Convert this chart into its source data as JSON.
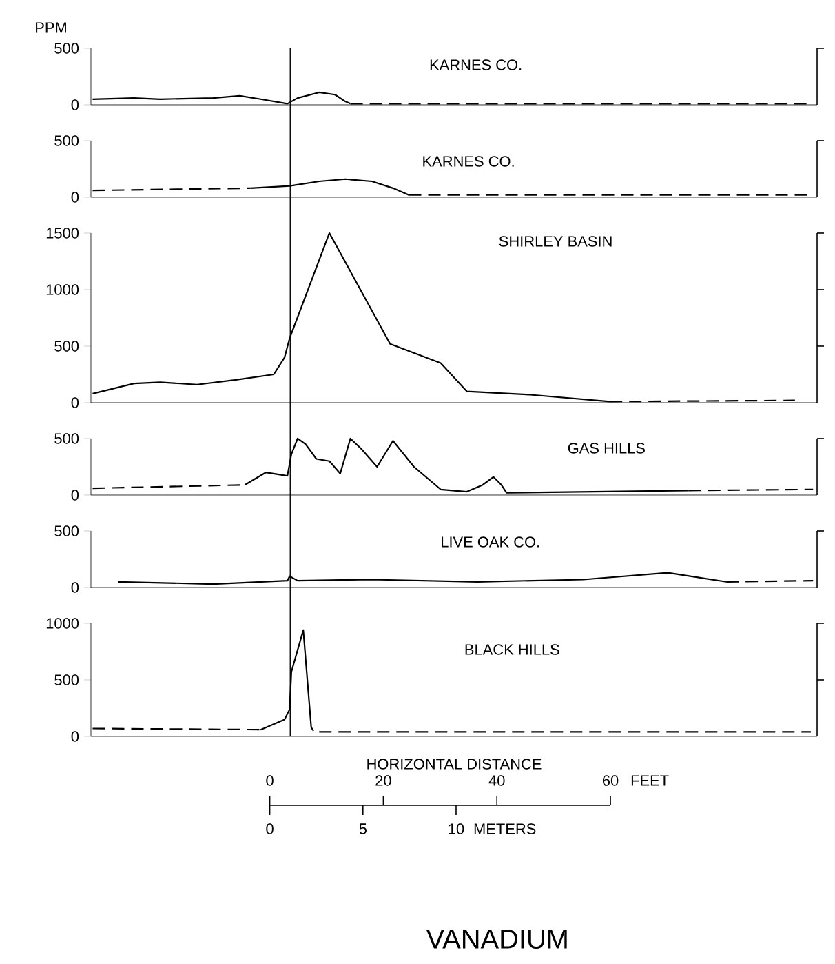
{
  "chart_data": [
    {
      "type": "line",
      "title": "KARNES CO.",
      "ylabel": "PPM",
      "xlim": [
        -31.5,
        96.4
      ],
      "ylim": [
        0,
        500
      ],
      "yticks": [
        0,
        500
      ],
      "tick_labels": "y",
      "ref_lines": [
        {
          "axis": "x",
          "value": 3.6
        }
      ],
      "series": [
        {
          "color": "#000000",
          "x": [
            -31.2,
            -23.9,
            -19.3,
            -10,
            -5.3,
            -1.6,
            3.1,
            4.9,
            8.7,
            11.5,
            13.3,
            14.2
          ],
          "values": [
            50,
            60,
            50,
            60,
            80,
            50,
            10,
            60,
            110,
            90,
            30,
            10
          ]
        },
        {
          "color": "#000000",
          "line_style": "dashed",
          "x": [
            14.2,
            95.7
          ],
          "values": [
            10,
            10
          ]
        }
      ]
    },
    {
      "type": "line",
      "title": "KARNES CO.",
      "xlim": [
        -31.5,
        96.4
      ],
      "ylim": [
        0,
        500
      ],
      "yticks": [
        0,
        500
      ],
      "tick_labels": "y",
      "ref_lines": [
        {
          "axis": "x",
          "value": 3.6
        }
      ],
      "series": [
        {
          "color": "#000000",
          "line_style": "dashed",
          "x": [
            -31.2,
            -3.4
          ],
          "values": [
            60,
            80
          ]
        },
        {
          "color": "#000000",
          "x": [
            -3.4,
            3.5,
            8.7,
            13.3,
            18,
            21.7,
            24.5
          ],
          "values": [
            80,
            100,
            140,
            160,
            140,
            80,
            20
          ]
        },
        {
          "color": "#000000",
          "line_style": "dashed",
          "x": [
            24.5,
            95.7
          ],
          "values": [
            20,
            20
          ]
        }
      ]
    },
    {
      "type": "line",
      "title": "SHIRLEY BASIN",
      "xlim": [
        -31.5,
        96.4
      ],
      "ylim": [
        0,
        1500
      ],
      "yticks": [
        0,
        500,
        1000,
        1500
      ],
      "tick_labels": "y",
      "ref_lines": [
        {
          "axis": "x",
          "value": 3.6
        }
      ],
      "series": [
        {
          "color": "#000000",
          "x": [
            -31.2,
            -23.9,
            -19.3,
            -12.8,
            -6.2,
            0.7,
            2.6,
            3.5,
            10.5,
            21.2,
            30.1,
            34.7,
            45.9,
            59.9
          ],
          "values": [
            80,
            170,
            180,
            160,
            200,
            250,
            400,
            570,
            1500,
            520,
            350,
            100,
            70,
            10
          ]
        },
        {
          "color": "#000000",
          "line_style": "dashed",
          "x": [
            59.9,
            92.5
          ],
          "values": [
            10,
            20
          ]
        }
      ]
    },
    {
      "type": "line",
      "title": "GAS HILLS",
      "xlim": [
        -31.5,
        96.4
      ],
      "ylim": [
        0,
        500
      ],
      "yticks": [
        0,
        500
      ],
      "tick_labels": "y",
      "ref_lines": [
        {
          "axis": "x",
          "value": 3.6
        }
      ],
      "series": [
        {
          "color": "#000000",
          "line_style": "dashed",
          "x": [
            -31.2,
            -4.4
          ],
          "values": [
            60,
            90
          ]
        },
        {
          "color": "#000000",
          "x": [
            -4.4,
            -0.7,
            3.1,
            3.8,
            4.9,
            6.3,
            8.2,
            10.5,
            12.4,
            14.2,
            16.1,
            18.9,
            21.7,
            25.4,
            30.1,
            34.7,
            37.5,
            39.4,
            40.8,
            41.7,
            73.8
          ],
          "values": [
            90,
            200,
            170,
            360,
            500,
            450,
            320,
            300,
            190,
            500,
            410,
            250,
            480,
            250,
            50,
            30,
            90,
            160,
            90,
            20,
            40
          ]
        },
        {
          "color": "#000000",
          "line_style": "dashed",
          "x": [
            73.8,
            95.7
          ],
          "values": [
            40,
            50
          ]
        }
      ]
    },
    {
      "type": "line",
      "title": "LIVE OAK CO.",
      "xlim": [
        -31.5,
        96.4
      ],
      "ylim": [
        0,
        500
      ],
      "yticks": [
        0,
        500
      ],
      "tick_labels": "y",
      "ref_lines": [
        {
          "axis": "x",
          "value": 3.6
        }
      ],
      "series": [
        {
          "color": "#000000",
          "x": [
            -26.7,
            -10,
            3.1,
            3.5,
            4.9,
            18,
            36.6,
            55.2,
            70.1,
            80.4
          ],
          "values": [
            50,
            30,
            60,
            100,
            60,
            70,
            50,
            70,
            130,
            50
          ]
        },
        {
          "color": "#000000",
          "line_style": "dashed",
          "x": [
            80.4,
            95.7
          ],
          "values": [
            50,
            60
          ]
        }
      ]
    },
    {
      "type": "line",
      "title": "BLACK HILLS",
      "xlabel": "HORIZONTAL DISTANCE",
      "x2label": "METERS",
      "xlim": [
        -31.5,
        96.4
      ],
      "xticks": [
        0,
        20,
        40,
        60
      ],
      "x2lim": [
        -9.6,
        29.38
      ],
      "x2ticks": [
        0,
        5,
        10
      ],
      "ylim": [
        0,
        1000
      ],
      "yticks": [
        0,
        500,
        1000
      ],
      "ref_lines": [
        {
          "axis": "x",
          "value": 3.6
        }
      ],
      "annotations": [
        "FEET",
        "VANADIUM"
      ],
      "series": [
        {
          "color": "#000000",
          "line_style": "dashed",
          "x": [
            -31.2,
            -1.6
          ],
          "values": [
            70,
            60
          ]
        },
        {
          "color": "#000000",
          "x": [
            -1.6,
            2.6,
            3.5,
            3.8,
            5.9,
            7.3,
            7.7
          ],
          "values": [
            60,
            150,
            240,
            570,
            940,
            80,
            50
          ]
        },
        {
          "color": "#000000",
          "line_style": "dashed",
          "x": [
            8.7,
            95.3
          ],
          "values": [
            40,
            40
          ]
        }
      ]
    }
  ]
}
